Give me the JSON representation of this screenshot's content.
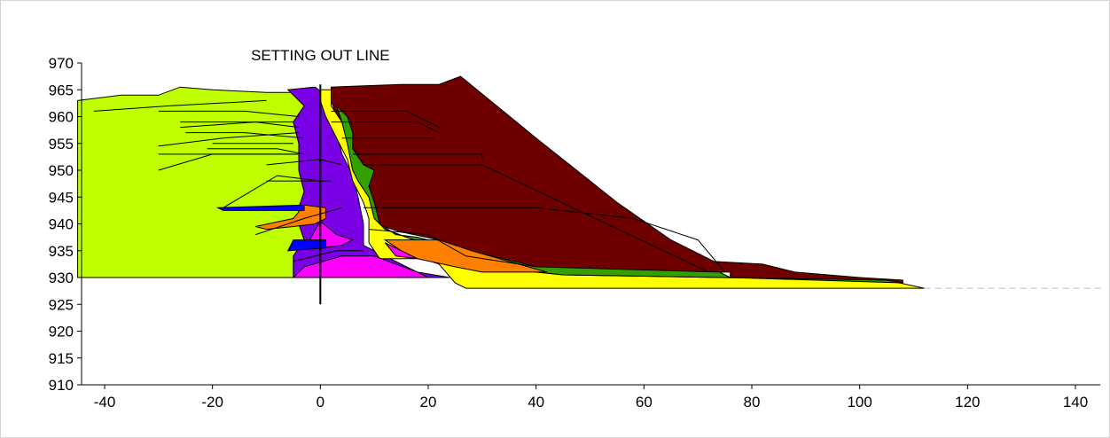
{
  "chart_data": {
    "type": "area",
    "title": "",
    "xlabel": "",
    "ylabel": "",
    "xlim": [
      -45,
      145
    ],
    "ylim": [
      910,
      970
    ],
    "x_ticks": [
      -40,
      -20,
      0,
      20,
      40,
      60,
      80,
      100,
      120,
      140
    ],
    "y_ticks": [
      910,
      915,
      920,
      925,
      930,
      935,
      940,
      945,
      950,
      955,
      960,
      965,
      970
    ],
    "grid": false,
    "annotations": [
      {
        "text": "SETTING OUT LINE",
        "x": 0,
        "y": 970
      }
    ],
    "setting_out_line": {
      "x": 0,
      "y_from": 925,
      "y_to": 966
    },
    "ground_line": {
      "y": 928,
      "x_from": 112,
      "x_to": 145,
      "style": "dashed"
    },
    "regions": [
      {
        "material": "original-ground",
        "color": "#bfff00",
        "points": [
          [
            -45,
            963
          ],
          [
            -37,
            964
          ],
          [
            -30,
            964
          ],
          [
            -26,
            965.5
          ],
          [
            -20,
            965
          ],
          [
            -10,
            964.5
          ],
          [
            -5,
            964.5
          ],
          [
            -3,
            962
          ],
          [
            -5,
            959
          ],
          [
            -4,
            955
          ],
          [
            -4,
            950
          ],
          [
            -3,
            946
          ],
          [
            -4,
            943
          ],
          [
            -4,
            940
          ],
          [
            -3,
            937
          ],
          [
            -5,
            934
          ],
          [
            -5,
            930
          ],
          [
            -45,
            930
          ]
        ]
      },
      {
        "material": "core-zone",
        "color": "#7a00e6",
        "points": [
          [
            -6,
            965
          ],
          [
            -1,
            965.5
          ],
          [
            1,
            964
          ],
          [
            1,
            961
          ],
          [
            3,
            957
          ],
          [
            4,
            953
          ],
          [
            6,
            949
          ],
          [
            7,
            945
          ],
          [
            8,
            940
          ],
          [
            8,
            936
          ],
          [
            12,
            934
          ],
          [
            18,
            931
          ],
          [
            24,
            930
          ],
          [
            -5,
            930
          ],
          [
            -5,
            934
          ],
          [
            -3,
            937
          ],
          [
            -4,
            940
          ],
          [
            -4,
            943
          ],
          [
            -3,
            946
          ],
          [
            -4,
            950
          ],
          [
            -4,
            955
          ],
          [
            -5,
            959
          ],
          [
            -3,
            962
          ]
        ]
      },
      {
        "material": "outer-shell",
        "color": "#6e0000",
        "points": [
          [
            2,
            965.5
          ],
          [
            15,
            966
          ],
          [
            22,
            966
          ],
          [
            26,
            967.5
          ],
          [
            40,
            956
          ],
          [
            55,
            944
          ],
          [
            65,
            937
          ],
          [
            73,
            933
          ],
          [
            82,
            932.5
          ],
          [
            88,
            931
          ],
          [
            100,
            930
          ],
          [
            108,
            929.5
          ],
          [
            108,
            929
          ],
          [
            76,
            929.5
          ],
          [
            76,
            931
          ],
          [
            42,
            931
          ],
          [
            28,
            935
          ],
          [
            22,
            937
          ],
          [
            15,
            938.5
          ],
          [
            10,
            940
          ],
          [
            9,
            941
          ],
          [
            9,
            945
          ],
          [
            9,
            949
          ],
          [
            6,
            950
          ],
          [
            7,
            953
          ],
          [
            5,
            955
          ],
          [
            3,
            957
          ],
          [
            3,
            960
          ],
          [
            2,
            963
          ]
        ]
      },
      {
        "material": "filter",
        "color": "#ffff00",
        "points": [
          [
            0,
            965
          ],
          [
            2,
            965
          ],
          [
            2,
            962
          ],
          [
            4,
            959
          ],
          [
            5,
            955
          ],
          [
            6,
            950
          ],
          [
            7,
            948
          ],
          [
            9,
            945
          ],
          [
            10,
            941
          ],
          [
            12,
            939
          ],
          [
            16,
            937.5
          ],
          [
            25,
            934.5
          ],
          [
            28,
            932.5
          ],
          [
            40,
            931
          ],
          [
            45,
            930.5
          ],
          [
            105,
            929.5
          ],
          [
            112,
            928
          ],
          [
            27,
            928
          ],
          [
            25,
            929
          ],
          [
            22,
            932.5
          ],
          [
            19,
            933.5
          ],
          [
            11,
            933.5
          ],
          [
            9,
            936.5
          ],
          [
            9,
            941
          ],
          [
            8,
            944
          ],
          [
            6,
            948
          ],
          [
            5,
            952
          ],
          [
            3,
            956
          ],
          [
            1,
            960
          ],
          [
            0,
            963
          ]
        ]
      },
      {
        "material": "transition",
        "color": "#33a000",
        "points": [
          [
            3,
            962
          ],
          [
            5,
            960
          ],
          [
            6,
            957
          ],
          [
            6,
            954
          ],
          [
            8,
            951
          ],
          [
            10,
            950
          ],
          [
            9,
            947
          ],
          [
            10,
            944
          ],
          [
            11,
            940
          ],
          [
            14,
            938
          ],
          [
            18,
            937.5
          ],
          [
            28,
            935
          ],
          [
            40,
            932
          ],
          [
            74,
            931
          ],
          [
            76,
            930
          ],
          [
            108,
            929
          ],
          [
            105,
            929.5
          ],
          [
            45,
            930.5
          ],
          [
            40,
            931
          ],
          [
            28,
            932.5
          ],
          [
            25,
            934.5
          ],
          [
            16,
            937.5
          ],
          [
            12,
            939
          ],
          [
            10,
            941
          ],
          [
            9,
            945
          ],
          [
            7,
            948
          ],
          [
            6,
            950
          ],
          [
            5,
            955
          ],
          [
            4,
            959
          ]
        ]
      },
      {
        "material": "drainage",
        "color": "#ff8000",
        "points": [
          [
            -12,
            939.5
          ],
          [
            -5,
            941
          ],
          [
            -3,
            943.5
          ],
          [
            1,
            943
          ],
          [
            1,
            941
          ],
          [
            -1,
            940
          ],
          [
            -5,
            939.5
          ],
          [
            -10,
            939
          ]
        ]
      },
      {
        "material": "drainage",
        "color": "#ff8000",
        "points": [
          [
            12,
            937
          ],
          [
            22,
            937
          ],
          [
            28,
            935
          ],
          [
            35,
            933
          ],
          [
            42,
            931
          ],
          [
            30,
            931
          ],
          [
            25,
            932
          ],
          [
            18,
            933.5
          ],
          [
            15,
            935
          ]
        ]
      },
      {
        "material": "toe-zone",
        "color": "#ff00ff",
        "points": [
          [
            -5,
            930
          ],
          [
            -3,
            932
          ],
          [
            4,
            934
          ],
          [
            10,
            934
          ],
          [
            18,
            931
          ],
          [
            20,
            930
          ]
        ]
      },
      {
        "material": "toe-zone",
        "color": "#ff00ff",
        "points": [
          [
            -2,
            937
          ],
          [
            0,
            940.5
          ],
          [
            3,
            938
          ],
          [
            6,
            937
          ],
          [
            4,
            936
          ],
          [
            0,
            935.5
          ],
          [
            -2,
            936
          ]
        ]
      },
      {
        "material": "toe-zone",
        "color": "#ff00ff",
        "points": [
          [
            12,
            936.5
          ],
          [
            15,
            935
          ],
          [
            18,
            933.5
          ],
          [
            14,
            934
          ]
        ]
      },
      {
        "material": "blanket",
        "color": "#0000ff",
        "points": [
          [
            -19,
            943
          ],
          [
            -3,
            943.5
          ],
          [
            -3,
            942.5
          ],
          [
            -18,
            942.5
          ]
        ]
      },
      {
        "material": "blanket",
        "color": "#0000ff",
        "points": [
          [
            -5,
            937
          ],
          [
            1,
            937
          ],
          [
            1,
            935.5
          ],
          [
            -6,
            935
          ]
        ]
      }
    ],
    "lift_lines": [
      [
        [
          -42,
          961
        ],
        [
          -28,
          962
        ],
        [
          -10,
          963
        ]
      ],
      [
        [
          -30,
          961
        ],
        [
          -14,
          961
        ],
        [
          -4,
          960
        ]
      ],
      [
        [
          -26,
          958
        ],
        [
          -12,
          959
        ],
        [
          -4,
          958
        ]
      ],
      [
        [
          -26,
          959
        ],
        [
          -12,
          959
        ],
        [
          -5,
          959
        ]
      ],
      [
        [
          -25,
          957
        ],
        [
          -14,
          957
        ],
        [
          -3,
          956
        ]
      ],
      [
        [
          -30,
          954.5
        ],
        [
          -18,
          956
        ],
        [
          -4,
          957
        ]
      ],
      [
        [
          -20,
          955
        ],
        [
          -5,
          955
        ]
      ],
      [
        [
          -30,
          953
        ],
        [
          -17,
          953
        ],
        [
          -4,
          953
        ]
      ],
      [
        [
          -21,
          954
        ],
        [
          -8,
          954
        ],
        [
          -3,
          953
        ]
      ],
      [
        [
          -30,
          950
        ],
        [
          -20,
          953
        ],
        [
          -4,
          953
        ]
      ],
      [
        [
          -10,
          951
        ],
        [
          0,
          952
        ],
        [
          4,
          951
        ]
      ],
      [
        [
          -10,
          948
        ],
        [
          -5,
          948
        ],
        [
          2,
          948
        ]
      ],
      [
        [
          -18,
          943
        ],
        [
          -8,
          949
        ],
        [
          0,
          948
        ]
      ],
      [
        [
          -12,
          938
        ],
        [
          -3,
          941
        ],
        [
          4,
          943
        ]
      ],
      [
        [
          -5,
          933
        ],
        [
          3,
          935
        ],
        [
          8,
          935
        ]
      ],
      [
        [
          2,
          961
        ],
        [
          16,
          961
        ],
        [
          22,
          958
        ]
      ],
      [
        [
          2,
          959
        ],
        [
          18,
          959
        ],
        [
          22,
          957
        ]
      ],
      [
        [
          4,
          956
        ],
        [
          14,
          956
        ],
        [
          21,
          956
        ]
      ],
      [
        [
          6,
          953
        ],
        [
          30,
          953
        ],
        [
          30,
          952
        ]
      ],
      [
        [
          8,
          951
        ],
        [
          20,
          951
        ],
        [
          30,
          951
        ],
        [
          72,
          931
        ]
      ],
      [
        [
          8,
          943
        ],
        [
          40,
          943
        ],
        [
          58,
          941
        ],
        [
          70,
          937
        ],
        [
          75,
          931
        ]
      ],
      [
        [
          9,
          939
        ],
        [
          20,
          938
        ],
        [
          27,
          934
        ],
        [
          40,
          932
        ]
      ]
    ],
    "layers_legend_note": ""
  }
}
